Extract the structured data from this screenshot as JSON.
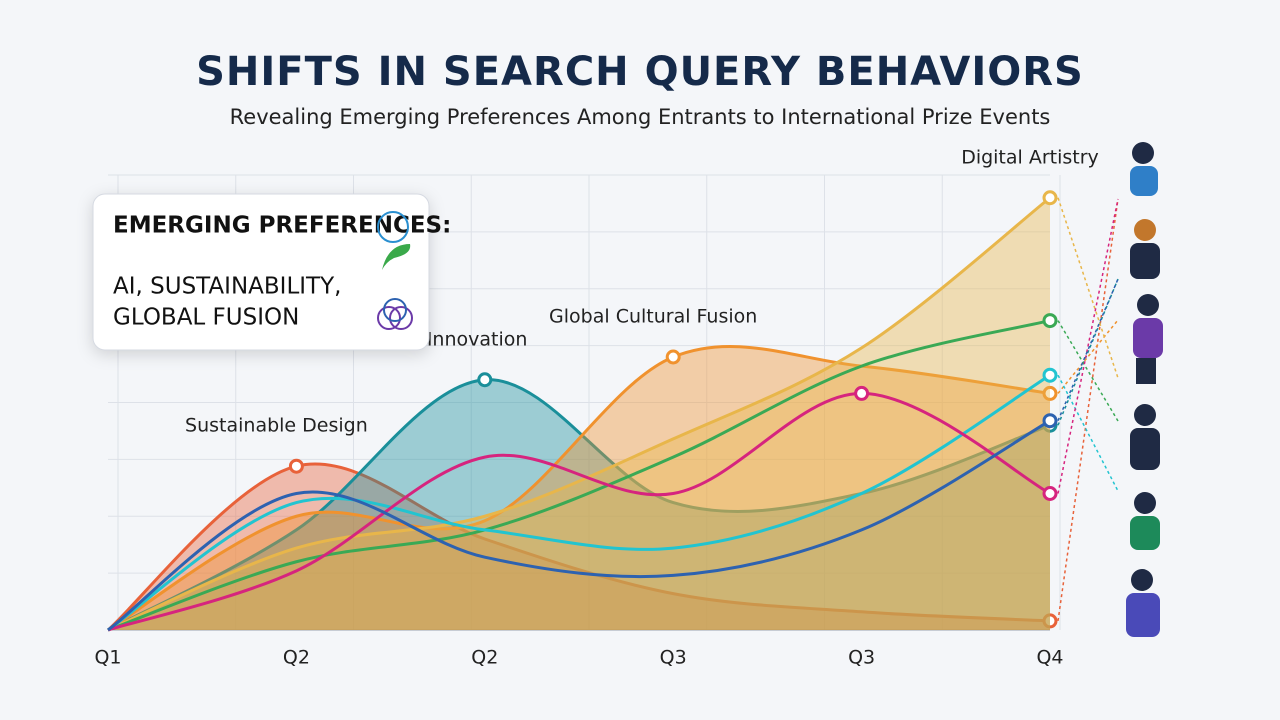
{
  "chart_data": {
    "type": "area",
    "title": "SHIFTS IN SEARCH QUERY BEHAVIORS",
    "subtitle": "Revealing Emerging Preferences Among Entrants to International Prize Events",
    "categories": [
      "Q1",
      "Q2",
      "Q2",
      "Q3",
      "Q3",
      "Q4"
    ],
    "ylim": [
      0,
      100
    ],
    "grid": true,
    "series": [
      {
        "name": "Sustainable Design",
        "color": "#e8623a",
        "kind": "area",
        "values": [
          0,
          36,
          20,
          8,
          4,
          2
        ]
      },
      {
        "name": "AI Innovation",
        "color": "#1a8f9a",
        "kind": "area",
        "values": [
          0,
          22,
          55,
          28,
          30,
          45
        ]
      },
      {
        "name": "Global Cultural Fusion",
        "color": "#f0922e",
        "kind": "area",
        "values": [
          0,
          25,
          24,
          60,
          58,
          52
        ]
      },
      {
        "name": "Digital Artistry",
        "color": "#e8b64a",
        "kind": "area",
        "values": [
          0,
          18,
          25,
          42,
          62,
          95
        ]
      },
      {
        "color": "#3aa955",
        "kind": "line",
        "values": [
          0,
          15,
          22,
          38,
          58,
          68
        ]
      },
      {
        "color": "#22c4d0",
        "kind": "line",
        "values": [
          0,
          28,
          22,
          18,
          30,
          56
        ]
      },
      {
        "color": "#d6247e",
        "kind": "line",
        "values": [
          0,
          13,
          38,
          30,
          52,
          30
        ]
      },
      {
        "color": "#2d62b0",
        "kind": "line",
        "values": [
          0,
          30,
          16,
          12,
          22,
          46
        ]
      }
    ],
    "callout": {
      "title": "EMERGING PREFERENCES:",
      "lines": [
        "AI, SUSTAINABILITY,",
        "GLOBAL FUSION"
      ]
    }
  }
}
